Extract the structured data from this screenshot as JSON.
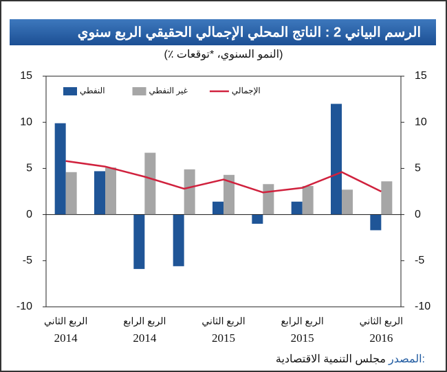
{
  "chart_data": {
    "type": "bar",
    "title": "الرسم البياني 2 : الناتج المحلي الإجمالي الحقيقي الربع سنوي",
    "subtitle": "(٪ النمو السنوي، *توقعات)",
    "source_label": "المصدر:",
    "source": "مجلس التنمية الاقتصادية",
    "categories": [
      [
        "الربع الثاني",
        "2014"
      ],
      null,
      [
        "الربع الرابع",
        "2014"
      ],
      null,
      [
        "الربع الثاني",
        "2015"
      ],
      null,
      [
        "الربع الرابع",
        "2015"
      ],
      null,
      [
        "الربع الثاني",
        "2016"
      ]
    ],
    "series": [
      {
        "name": "النفطي",
        "type": "bar",
        "color": "#1f5597",
        "values": [
          9.9,
          4.7,
          -5.9,
          -5.6,
          1.4,
          -1.0,
          1.4,
          12.0,
          -1.7
        ]
      },
      {
        "name": "غير النفطي",
        "type": "bar",
        "color": "#a6a6a6",
        "values": [
          4.6,
          5.1,
          6.7,
          4.9,
          4.3,
          3.3,
          3.1,
          2.7,
          3.6
        ]
      },
      {
        "name": "الإجمالي",
        "type": "line",
        "color": "#d0213d",
        "values": [
          5.8,
          5.2,
          4.1,
          2.8,
          3.8,
          2.4,
          2.9,
          4.6,
          2.5
        ]
      }
    ],
    "ylim": [
      -10,
      15
    ],
    "yticks": [
      -10,
      -5,
      0,
      5,
      10,
      15
    ],
    "y2lim": [
      -10,
      15
    ],
    "y2ticks": [
      -10,
      -5,
      0,
      5,
      10,
      15
    ],
    "legend": "top-left",
    "grid": false
  }
}
